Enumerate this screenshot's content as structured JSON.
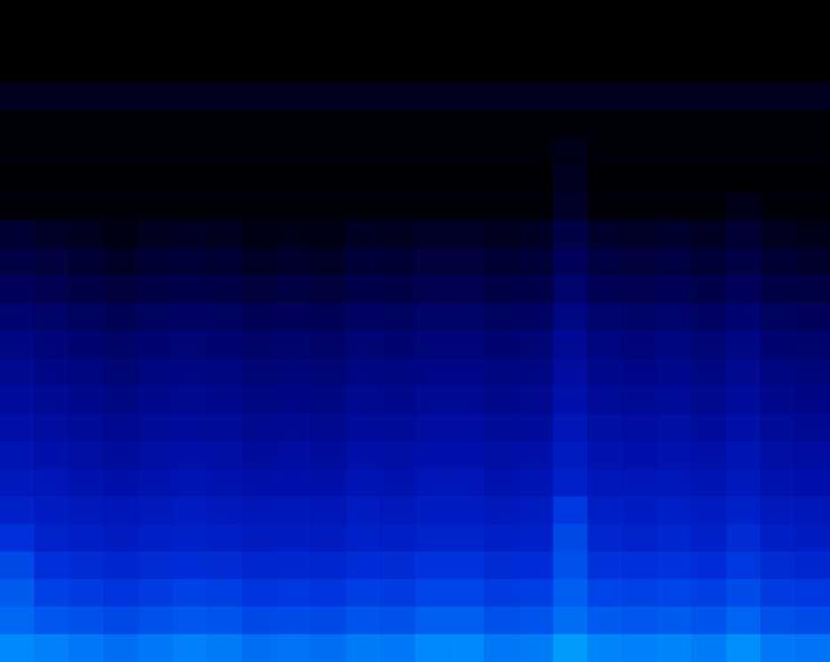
{
  "chart_data": {
    "type": "heatmap",
    "tick_labels": false,
    "grid": false,
    "colors": [
      "#000000",
      "#0000ff",
      "#00ffff"
    ],
    "zlim": [
      0,
      1
    ],
    "cells": [
      [
        0,
        0,
        0,
        0,
        0,
        0,
        0,
        0,
        0,
        0,
        0,
        0,
        0,
        0,
        0,
        0,
        0,
        0,
        0,
        0,
        0,
        0,
        0,
        0
      ],
      [
        0,
        0,
        0,
        0,
        0,
        0,
        0,
        0,
        0,
        0,
        0,
        0,
        0,
        0,
        0,
        0,
        0,
        0,
        0,
        0,
        0,
        0,
        0,
        0
      ],
      [
        0,
        0,
        0,
        0,
        0,
        0,
        0,
        0,
        0,
        0,
        0,
        0,
        0,
        0,
        0,
        0,
        0,
        0,
        0,
        0,
        0,
        0,
        0,
        0
      ],
      [
        0.06,
        0.06,
        0.06,
        0.06,
        0.06,
        0.06,
        0.06,
        0.06,
        0.06,
        0.06,
        0.06,
        0.06,
        0.06,
        0.06,
        0.06,
        0.06,
        0.06,
        0.06,
        0.06,
        0.06,
        0.06,
        0.06,
        0.06,
        0.06
      ],
      [
        0.02,
        0.02,
        0.02,
        0.02,
        0.02,
        0.02,
        0.02,
        0.02,
        0.02,
        0.02,
        0.02,
        0.02,
        0.02,
        0.02,
        0.02,
        0.02,
        0.02,
        0.02,
        0.02,
        0.02,
        0.02,
        0.02,
        0.02,
        0.02
      ],
      [
        0.02,
        0.02,
        0.02,
        0.02,
        0.02,
        0.02,
        0.02,
        0.02,
        0.02,
        0.02,
        0.02,
        0.02,
        0.02,
        0.02,
        0.02,
        0.02,
        0.05,
        0.02,
        0.02,
        0.02,
        0.02,
        0.02,
        0.02,
        0.02
      ],
      [
        0.01,
        0.01,
        0.01,
        0.01,
        0.01,
        0.01,
        0.01,
        0.01,
        0.01,
        0.01,
        0.01,
        0.01,
        0.01,
        0.01,
        0.01,
        0.01,
        0.06,
        0.01,
        0.01,
        0.01,
        0.01,
        0.01,
        0.01,
        0.01
      ],
      [
        0.02,
        0.02,
        0.02,
        0.02,
        0.02,
        0.02,
        0.02,
        0.02,
        0.02,
        0.02,
        0.02,
        0.02,
        0.02,
        0.02,
        0.02,
        0.02,
        0.08,
        0.02,
        0.02,
        0.02,
        0.02,
        0.05,
        0.02,
        0.02
      ],
      [
        0.1,
        0.08,
        0.06,
        0.04,
        0.06,
        0.07,
        0.06,
        0.04,
        0.05,
        0.04,
        0.07,
        0.06,
        0.08,
        0.08,
        0.06,
        0.07,
        0.14,
        0.09,
        0.08,
        0.09,
        0.07,
        0.1,
        0.06,
        0.05
      ],
      [
        0.14,
        0.12,
        0.1,
        0.08,
        0.1,
        0.11,
        0.1,
        0.08,
        0.09,
        0.08,
        0.11,
        0.1,
        0.12,
        0.12,
        0.1,
        0.11,
        0.18,
        0.13,
        0.12,
        0.13,
        0.11,
        0.14,
        0.1,
        0.09
      ],
      [
        0.18,
        0.16,
        0.14,
        0.12,
        0.14,
        0.15,
        0.14,
        0.12,
        0.13,
        0.12,
        0.15,
        0.14,
        0.16,
        0.16,
        0.14,
        0.15,
        0.22,
        0.17,
        0.16,
        0.17,
        0.15,
        0.18,
        0.14,
        0.13
      ],
      [
        0.23,
        0.21,
        0.19,
        0.17,
        0.19,
        0.2,
        0.19,
        0.17,
        0.18,
        0.17,
        0.2,
        0.19,
        0.21,
        0.21,
        0.19,
        0.2,
        0.27,
        0.22,
        0.21,
        0.22,
        0.2,
        0.23,
        0.19,
        0.18
      ],
      [
        0.27,
        0.25,
        0.23,
        0.21,
        0.23,
        0.24,
        0.23,
        0.21,
        0.22,
        0.21,
        0.24,
        0.23,
        0.25,
        0.25,
        0.23,
        0.24,
        0.31,
        0.26,
        0.25,
        0.26,
        0.24,
        0.27,
        0.23,
        0.22
      ],
      [
        0.3,
        0.28,
        0.26,
        0.24,
        0.26,
        0.27,
        0.26,
        0.24,
        0.25,
        0.24,
        0.27,
        0.26,
        0.28,
        0.28,
        0.26,
        0.27,
        0.34,
        0.29,
        0.28,
        0.29,
        0.27,
        0.3,
        0.26,
        0.25
      ],
      [
        0.33,
        0.31,
        0.29,
        0.27,
        0.29,
        0.3,
        0.29,
        0.27,
        0.28,
        0.27,
        0.3,
        0.29,
        0.31,
        0.31,
        0.29,
        0.3,
        0.37,
        0.32,
        0.31,
        0.32,
        0.3,
        0.33,
        0.29,
        0.28
      ],
      [
        0.36,
        0.34,
        0.32,
        0.3,
        0.32,
        0.33,
        0.32,
        0.3,
        0.31,
        0.3,
        0.33,
        0.32,
        0.34,
        0.34,
        0.32,
        0.33,
        0.4,
        0.35,
        0.34,
        0.35,
        0.33,
        0.36,
        0.32,
        0.31
      ],
      [
        0.39,
        0.37,
        0.35,
        0.33,
        0.35,
        0.36,
        0.35,
        0.33,
        0.34,
        0.33,
        0.36,
        0.35,
        0.37,
        0.37,
        0.35,
        0.36,
        0.43,
        0.38,
        0.37,
        0.38,
        0.36,
        0.39,
        0.35,
        0.34
      ],
      [
        0.42,
        0.4,
        0.38,
        0.36,
        0.38,
        0.39,
        0.38,
        0.36,
        0.37,
        0.36,
        0.39,
        0.38,
        0.4,
        0.4,
        0.38,
        0.39,
        0.46,
        0.41,
        0.4,
        0.41,
        0.39,
        0.42,
        0.38,
        0.37
      ],
      [
        0.46,
        0.44,
        0.42,
        0.4,
        0.42,
        0.43,
        0.42,
        0.4,
        0.41,
        0.4,
        0.43,
        0.42,
        0.44,
        0.44,
        0.42,
        0.43,
        0.55,
        0.45,
        0.44,
        0.45,
        0.43,
        0.46,
        0.42,
        0.41
      ],
      [
        0.52,
        0.47,
        0.45,
        0.43,
        0.45,
        0.46,
        0.45,
        0.43,
        0.44,
        0.43,
        0.46,
        0.45,
        0.47,
        0.47,
        0.45,
        0.46,
        0.6,
        0.48,
        0.47,
        0.48,
        0.46,
        0.5,
        0.45,
        0.44
      ],
      [
        0.6,
        0.52,
        0.5,
        0.48,
        0.5,
        0.51,
        0.5,
        0.48,
        0.49,
        0.48,
        0.51,
        0.5,
        0.53,
        0.53,
        0.5,
        0.51,
        0.62,
        0.53,
        0.52,
        0.53,
        0.51,
        0.55,
        0.5,
        0.49
      ],
      [
        0.65,
        0.58,
        0.56,
        0.54,
        0.56,
        0.58,
        0.57,
        0.54,
        0.55,
        0.54,
        0.57,
        0.56,
        0.59,
        0.59,
        0.56,
        0.57,
        0.66,
        0.59,
        0.58,
        0.59,
        0.57,
        0.61,
        0.56,
        0.55
      ],
      [
        0.68,
        0.64,
        0.62,
        0.6,
        0.62,
        0.64,
        0.63,
        0.6,
        0.61,
        0.6,
        0.63,
        0.62,
        0.66,
        0.66,
        0.62,
        0.63,
        0.7,
        0.65,
        0.64,
        0.65,
        0.63,
        0.67,
        0.62,
        0.61
      ],
      [
        0.76,
        0.74,
        0.72,
        0.7,
        0.72,
        0.74,
        0.73,
        0.7,
        0.71,
        0.7,
        0.73,
        0.72,
        0.76,
        0.76,
        0.72,
        0.73,
        0.8,
        0.75,
        0.74,
        0.75,
        0.73,
        0.77,
        0.72,
        0.71
      ]
    ]
  }
}
